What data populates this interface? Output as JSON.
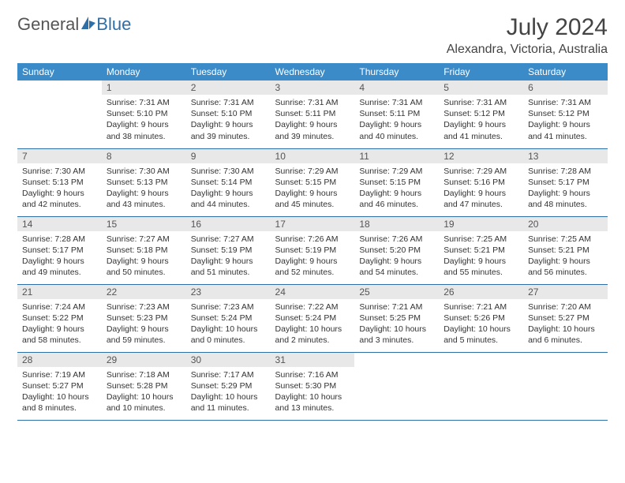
{
  "brand": {
    "part1": "General",
    "part2": "Blue"
  },
  "title": "July 2024",
  "location": "Alexandra, Victoria, Australia",
  "colors": {
    "header_bg": "#3b8bc9",
    "header_text": "#ffffff",
    "daynum_bg": "#e8e8e8",
    "row_border": "#2f6fa7",
    "body_text": "#333333",
    "logo_gray": "#555555",
    "logo_blue": "#2f6fa7",
    "page_bg": "#ffffff"
  },
  "weekdays": [
    "Sunday",
    "Monday",
    "Tuesday",
    "Wednesday",
    "Thursday",
    "Friday",
    "Saturday"
  ],
  "start_weekday": 1,
  "days": [
    {
      "n": 1,
      "sr": "7:31 AM",
      "ss": "5:10 PM",
      "dl": "9 hours and 38 minutes."
    },
    {
      "n": 2,
      "sr": "7:31 AM",
      "ss": "5:10 PM",
      "dl": "9 hours and 39 minutes."
    },
    {
      "n": 3,
      "sr": "7:31 AM",
      "ss": "5:11 PM",
      "dl": "9 hours and 39 minutes."
    },
    {
      "n": 4,
      "sr": "7:31 AM",
      "ss": "5:11 PM",
      "dl": "9 hours and 40 minutes."
    },
    {
      "n": 5,
      "sr": "7:31 AM",
      "ss": "5:12 PM",
      "dl": "9 hours and 41 minutes."
    },
    {
      "n": 6,
      "sr": "7:31 AM",
      "ss": "5:12 PM",
      "dl": "9 hours and 41 minutes."
    },
    {
      "n": 7,
      "sr": "7:30 AM",
      "ss": "5:13 PM",
      "dl": "9 hours and 42 minutes."
    },
    {
      "n": 8,
      "sr": "7:30 AM",
      "ss": "5:13 PM",
      "dl": "9 hours and 43 minutes."
    },
    {
      "n": 9,
      "sr": "7:30 AM",
      "ss": "5:14 PM",
      "dl": "9 hours and 44 minutes."
    },
    {
      "n": 10,
      "sr": "7:29 AM",
      "ss": "5:15 PM",
      "dl": "9 hours and 45 minutes."
    },
    {
      "n": 11,
      "sr": "7:29 AM",
      "ss": "5:15 PM",
      "dl": "9 hours and 46 minutes."
    },
    {
      "n": 12,
      "sr": "7:29 AM",
      "ss": "5:16 PM",
      "dl": "9 hours and 47 minutes."
    },
    {
      "n": 13,
      "sr": "7:28 AM",
      "ss": "5:17 PM",
      "dl": "9 hours and 48 minutes."
    },
    {
      "n": 14,
      "sr": "7:28 AM",
      "ss": "5:17 PM",
      "dl": "9 hours and 49 minutes."
    },
    {
      "n": 15,
      "sr": "7:27 AM",
      "ss": "5:18 PM",
      "dl": "9 hours and 50 minutes."
    },
    {
      "n": 16,
      "sr": "7:27 AM",
      "ss": "5:19 PM",
      "dl": "9 hours and 51 minutes."
    },
    {
      "n": 17,
      "sr": "7:26 AM",
      "ss": "5:19 PM",
      "dl": "9 hours and 52 minutes."
    },
    {
      "n": 18,
      "sr": "7:26 AM",
      "ss": "5:20 PM",
      "dl": "9 hours and 54 minutes."
    },
    {
      "n": 19,
      "sr": "7:25 AM",
      "ss": "5:21 PM",
      "dl": "9 hours and 55 minutes."
    },
    {
      "n": 20,
      "sr": "7:25 AM",
      "ss": "5:21 PM",
      "dl": "9 hours and 56 minutes."
    },
    {
      "n": 21,
      "sr": "7:24 AM",
      "ss": "5:22 PM",
      "dl": "9 hours and 58 minutes."
    },
    {
      "n": 22,
      "sr": "7:23 AM",
      "ss": "5:23 PM",
      "dl": "9 hours and 59 minutes."
    },
    {
      "n": 23,
      "sr": "7:23 AM",
      "ss": "5:24 PM",
      "dl": "10 hours and 0 minutes."
    },
    {
      "n": 24,
      "sr": "7:22 AM",
      "ss": "5:24 PM",
      "dl": "10 hours and 2 minutes."
    },
    {
      "n": 25,
      "sr": "7:21 AM",
      "ss": "5:25 PM",
      "dl": "10 hours and 3 minutes."
    },
    {
      "n": 26,
      "sr": "7:21 AM",
      "ss": "5:26 PM",
      "dl": "10 hours and 5 minutes."
    },
    {
      "n": 27,
      "sr": "7:20 AM",
      "ss": "5:27 PM",
      "dl": "10 hours and 6 minutes."
    },
    {
      "n": 28,
      "sr": "7:19 AM",
      "ss": "5:27 PM",
      "dl": "10 hours and 8 minutes."
    },
    {
      "n": 29,
      "sr": "7:18 AM",
      "ss": "5:28 PM",
      "dl": "10 hours and 10 minutes."
    },
    {
      "n": 30,
      "sr": "7:17 AM",
      "ss": "5:29 PM",
      "dl": "10 hours and 11 minutes."
    },
    {
      "n": 31,
      "sr": "7:16 AM",
      "ss": "5:30 PM",
      "dl": "10 hours and 13 minutes."
    }
  ],
  "labels": {
    "sunrise": "Sunrise:",
    "sunset": "Sunset:",
    "daylight": "Daylight:"
  }
}
